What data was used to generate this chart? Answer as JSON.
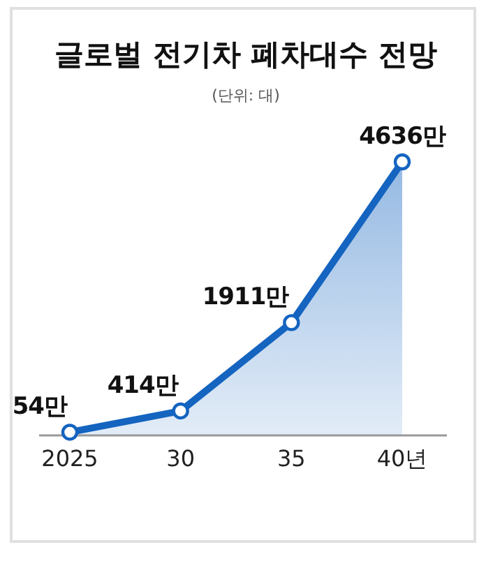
{
  "chart_data": {
    "type": "area",
    "title": "글로벌 전기차 폐차대수 전망",
    "subtitle": "(단위: 대)",
    "categories": [
      "2025",
      "30",
      "35",
      "40년"
    ],
    "values": [
      54,
      414,
      1911,
      4636
    ],
    "value_labels": [
      "54만",
      "414만",
      "1911만",
      "4636만"
    ],
    "color": "#1464c0",
    "marker": "circle"
  }
}
